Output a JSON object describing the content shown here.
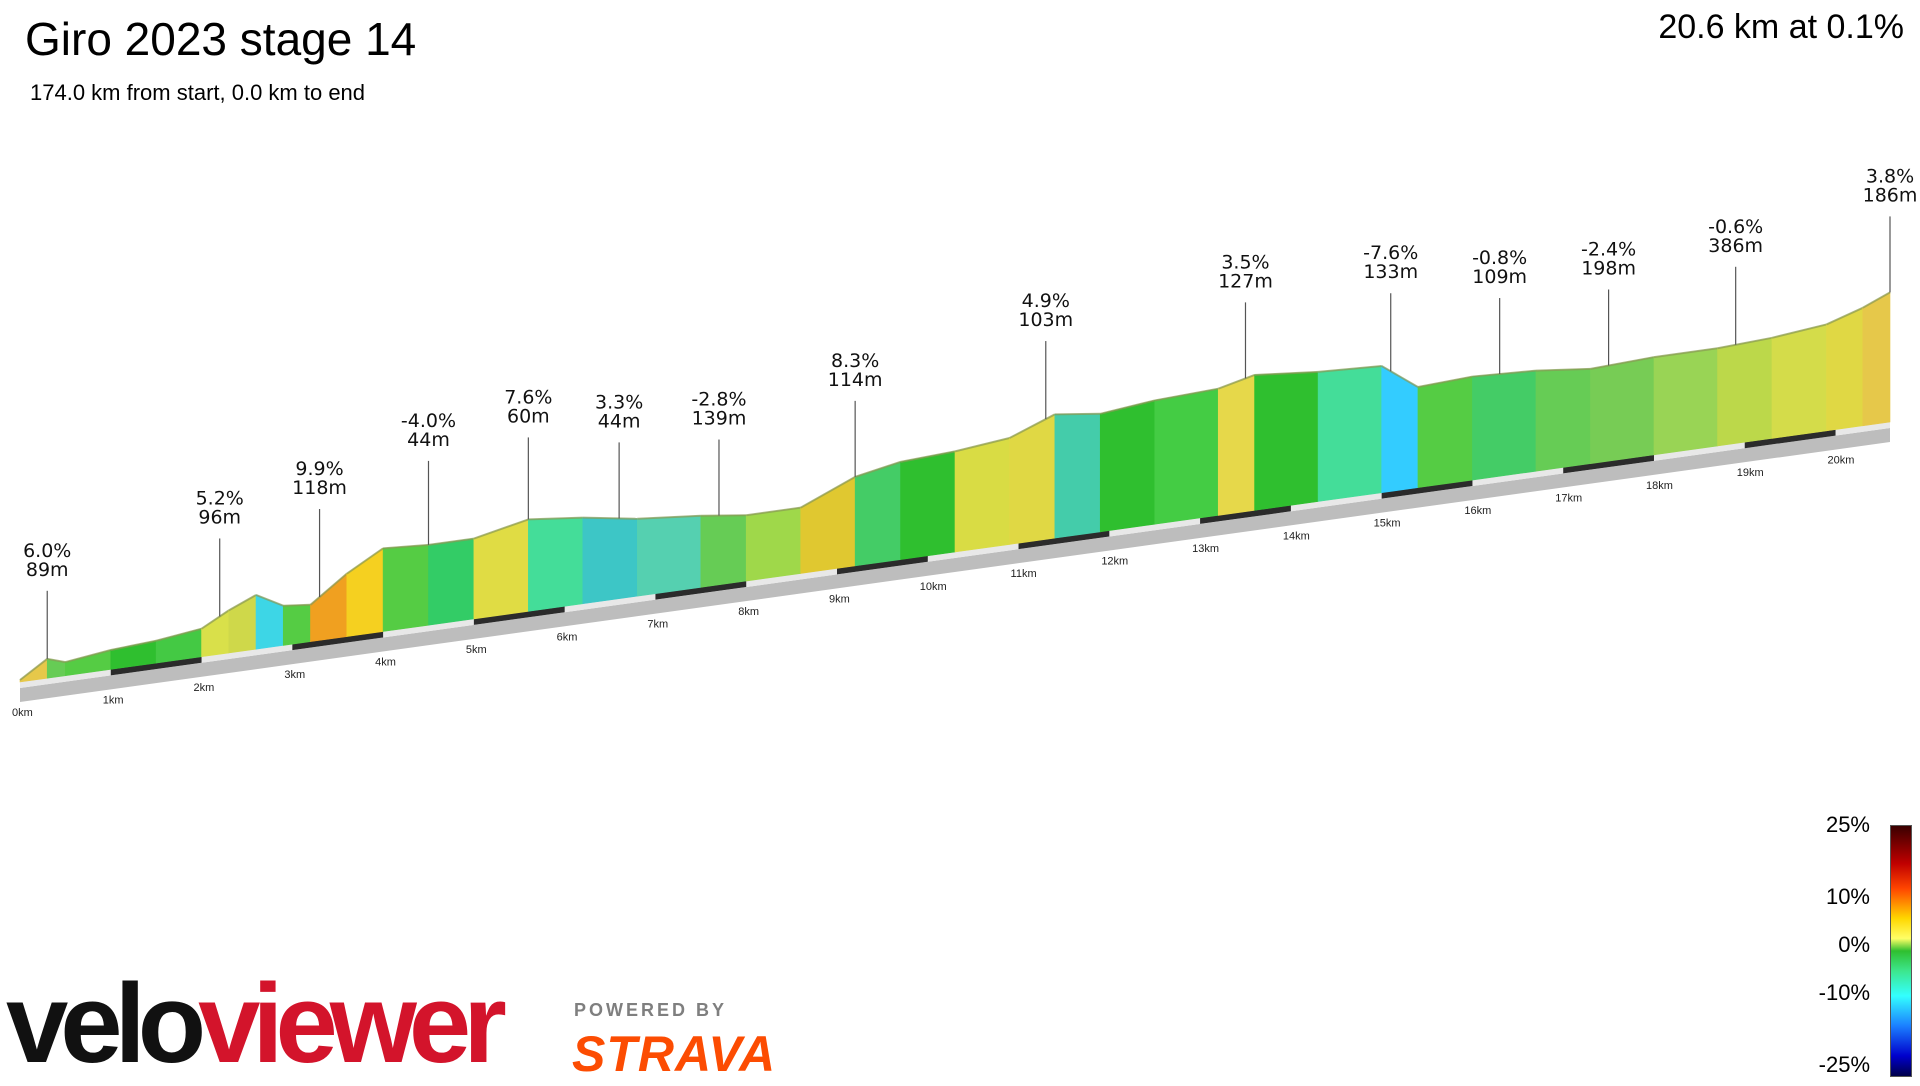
{
  "header": {
    "title": "Giro 2023 stage 14",
    "subtitle": "174.0 km from start, 0.0 km to end",
    "summary": "20.6 km at 0.1%"
  },
  "branding": {
    "velo": "velo",
    "viewer": "viewer",
    "powered_by": "POWERED BY",
    "strava": "STRAVA"
  },
  "legend": {
    "ticks": [
      "25%",
      "10%",
      "0%",
      "-10%",
      "-25%"
    ]
  },
  "chart_data": {
    "type": "area",
    "title": "Giro 2023 stage 14",
    "xlabel": "",
    "ylabel": "",
    "x_unit": "km",
    "xlim": [
      0,
      20.6
    ],
    "x_ticks": [
      "0km",
      "1km",
      "2km",
      "3km",
      "4km",
      "5km",
      "6km",
      "7km",
      "8km",
      "9km",
      "10km",
      "11km",
      "12km",
      "13km",
      "14km",
      "15km",
      "16km",
      "17km",
      "18km",
      "19km",
      "20km"
    ],
    "annotations": [
      {
        "km": 0.3,
        "gradient": "6.0%",
        "elevation": "89m"
      },
      {
        "km": 2.2,
        "gradient": "5.2%",
        "elevation": "96m"
      },
      {
        "km": 3.3,
        "gradient": "9.9%",
        "elevation": "118m"
      },
      {
        "km": 4.5,
        "gradient": "-4.0%",
        "elevation": "44m"
      },
      {
        "km": 5.6,
        "gradient": "7.6%",
        "elevation": "60m"
      },
      {
        "km": 6.6,
        "gradient": "3.3%",
        "elevation": "44m"
      },
      {
        "km": 7.7,
        "gradient": "-2.8%",
        "elevation": "139m"
      },
      {
        "km": 9.2,
        "gradient": "8.3%",
        "elevation": "114m"
      },
      {
        "km": 11.3,
        "gradient": "4.9%",
        "elevation": "103m"
      },
      {
        "km": 13.5,
        "gradient": "3.5%",
        "elevation": "127m"
      },
      {
        "km": 15.1,
        "gradient": "-7.6%",
        "elevation": "133m"
      },
      {
        "km": 16.3,
        "gradient": "-0.8%",
        "elevation": "109m"
      },
      {
        "km": 17.5,
        "gradient": "-2.4%",
        "elevation": "198m"
      },
      {
        "km": 18.9,
        "gradient": "-0.6%",
        "elevation": "386m"
      },
      {
        "km": 20.6,
        "gradient": "3.8%",
        "elevation": "186m"
      }
    ],
    "profile": [
      {
        "km": 0.0,
        "h": 0,
        "c": "#d9d94a"
      },
      {
        "km": 0.3,
        "h": 12,
        "c": "#e6c84a"
      },
      {
        "km": 0.5,
        "h": 8,
        "c": "#66cc55"
      },
      {
        "km": 1.0,
        "h": 12,
        "c": "#55cc44"
      },
      {
        "km": 1.5,
        "h": 14,
        "c": "#2fbf2f"
      },
      {
        "km": 2.0,
        "h": 18,
        "c": "#44c944"
      },
      {
        "km": 2.3,
        "h": 28,
        "c": "#d9e04a"
      },
      {
        "km": 2.6,
        "h": 36,
        "c": "#cfd84a"
      },
      {
        "km": 2.9,
        "h": 26,
        "c": "#3dd6e6"
      },
      {
        "km": 3.2,
        "h": 24,
        "c": "#55cc44"
      },
      {
        "km": 3.6,
        "h": 42,
        "c": "#f0a020"
      },
      {
        "km": 4.0,
        "h": 56,
        "c": "#f5d020"
      },
      {
        "km": 4.5,
        "h": 54,
        "c": "#55cc44"
      },
      {
        "km": 5.0,
        "h": 54,
        "c": "#33cc66"
      },
      {
        "km": 5.6,
        "h": 62,
        "c": "#e0dc44"
      },
      {
        "km": 6.2,
        "h": 58,
        "c": "#44dd99"
      },
      {
        "km": 6.8,
        "h": 52,
        "c": "#3dc6c6"
      },
      {
        "km": 7.5,
        "h": 48,
        "c": "#55d0b0"
      },
      {
        "km": 8.0,
        "h": 44,
        "c": "#66cc55"
      },
      {
        "km": 8.6,
        "h": 44,
        "c": "#9fd84a"
      },
      {
        "km": 9.2,
        "h": 60,
        "c": "#e0c830"
      },
      {
        "km": 9.7,
        "h": 66,
        "c": "#44cc66"
      },
      {
        "km": 10.3,
        "h": 68,
        "c": "#2fbf2f"
      },
      {
        "km": 10.9,
        "h": 72,
        "c": "#d9dc44"
      },
      {
        "km": 11.4,
        "h": 84,
        "c": "#e0d844"
      },
      {
        "km": 11.9,
        "h": 80,
        "c": "#44ccaa"
      },
      {
        "km": 12.5,
        "h": 84,
        "c": "#2fbf2f"
      },
      {
        "km": 13.2,
        "h": 86,
        "c": "#44cc44"
      },
      {
        "km": 13.6,
        "h": 92,
        "c": "#e6d84a"
      },
      {
        "km": 14.3,
        "h": 88,
        "c": "#2fbf2f"
      },
      {
        "km": 15.0,
        "h": 86,
        "c": "#44dd99"
      },
      {
        "km": 15.4,
        "h": 68,
        "c": "#33ccff"
      },
      {
        "km": 16.0,
        "h": 70,
        "c": "#55cc44"
      },
      {
        "km": 16.7,
        "h": 68,
        "c": "#44cc66"
      },
      {
        "km": 17.3,
        "h": 64,
        "c": "#66cc55"
      },
      {
        "km": 18.0,
        "h": 66,
        "c": "#77cc55"
      },
      {
        "km": 18.7,
        "h": 66,
        "c": "#99d455"
      },
      {
        "km": 19.3,
        "h": 68,
        "c": "#bcd84a"
      },
      {
        "km": 19.9,
        "h": 72,
        "c": "#d4dc4a"
      },
      {
        "km": 20.3,
        "h": 80,
        "c": "#e0d844"
      },
      {
        "km": 20.6,
        "h": 88,
        "c": "#e6c84a"
      }
    ],
    "colors": {
      "base_top": "#e8e8e8",
      "base_side": "#bdbdbd",
      "road_marker": "#2b2b2b"
    }
  }
}
